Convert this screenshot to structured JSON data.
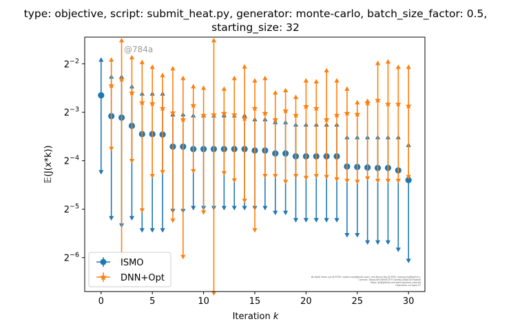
{
  "chart_data": {
    "type": "errorbar",
    "title": "type: objective, script: submit_heat.py, generator: monte-carlo, batch_size_factor: 0.5,",
    "title_line2": "starting_size: 32",
    "xlabel_text": "Iteration ",
    "xlabel_var": "k",
    "ylabel": "𝔼(J(x*k))",
    "y_scale": "log2",
    "xlim": [
      -1.6,
      31.6
    ],
    "ylim_log2": [
      -6.7,
      -1.45
    ],
    "x_ticks": [
      0,
      5,
      10,
      15,
      20,
      25,
      30
    ],
    "y_ticks": [
      {
        "base": "2",
        "exp": "−2",
        "log2": -2
      },
      {
        "base": "2",
        "exp": "−3",
        "log2": -3
      },
      {
        "base": "2",
        "exp": "−4",
        "log2": -4
      },
      {
        "base": "2",
        "exp": "−5",
        "log2": -5
      },
      {
        "base": "2",
        "exp": "−6",
        "log2": -6
      }
    ],
    "watermark": "@784a",
    "footer_lines": [
      "By Kjetil Olsen Lye @ ETHZ <kjetil.o.lye@gmail.com> and Kenny Ray @ EPFL <kenny.ray@epfl.ch>",
      "Commit: 784aa1697385f437f77d2e9b1284b13e7fa0bd0",
      "Repo: git@github.com:kjetil-lye/ismo_heat.git",
      "Hostname: eu-login-37"
    ],
    "legend": {
      "position": "lower-left",
      "entries": [
        "ISMO",
        "DNN+Opt"
      ]
    },
    "series": [
      {
        "name": "ISMO",
        "color": "#1f77b4",
        "marker": "circle",
        "x": [
          0,
          1,
          2,
          3,
          4,
          5,
          6,
          7,
          8,
          9,
          10,
          11,
          12,
          13,
          14,
          15,
          16,
          17,
          18,
          19,
          20,
          21,
          22,
          23,
          24,
          25,
          26,
          27,
          28,
          29,
          30
        ],
        "mean_log2": [
          -2.65,
          -3.08,
          -3.11,
          -3.28,
          -3.45,
          -3.45,
          -3.46,
          -3.71,
          -3.71,
          -3.76,
          -3.76,
          -3.76,
          -3.76,
          -3.76,
          -3.76,
          -3.79,
          -3.79,
          -3.85,
          -3.85,
          -3.91,
          -3.91,
          -3.91,
          -3.91,
          -3.91,
          -4.12,
          -4.13,
          -4.14,
          -4.15,
          -4.15,
          -4.2,
          -4.4
        ],
        "upper_log2": [
          -1.9,
          -2.25,
          -2.25,
          -2.45,
          -2.6,
          -2.6,
          -2.6,
          -3.03,
          -3.03,
          -3.05,
          -3.05,
          -3.05,
          -3.05,
          -3.05,
          -3.05,
          -3.13,
          -3.13,
          -3.19,
          -3.19,
          -3.24,
          -3.24,
          -3.24,
          -3.24,
          -3.24,
          -3.5,
          -3.5,
          -3.5,
          -3.5,
          -3.5,
          -3.5,
          -3.66
        ],
        "lower_log2": [
          -4.25,
          -5.2,
          -5.35,
          -5.2,
          -5.45,
          -5.45,
          -5.45,
          -5.05,
          -5.05,
          -4.99,
          -4.99,
          -4.99,
          -4.99,
          -4.99,
          -4.99,
          -4.99,
          -4.99,
          -5.09,
          -5.09,
          -5.24,
          -5.24,
          -5.24,
          -5.24,
          -5.24,
          -5.55,
          -5.55,
          -5.7,
          -5.7,
          -5.7,
          -5.85,
          -6.08
        ]
      },
      {
        "name": "DNN+Opt",
        "color": "#ff7f0e",
        "marker": "star",
        "x": [
          1,
          2,
          3,
          4,
          5,
          6,
          7,
          8,
          9,
          10,
          11,
          12,
          13,
          14,
          15,
          16,
          17,
          18,
          19,
          20,
          21,
          22,
          23,
          24,
          25,
          26,
          27,
          28,
          29,
          30
        ],
        "mean_log2": [
          -2.45,
          -2.32,
          -2.6,
          -2.8,
          -2.82,
          -2.92,
          -3.01,
          -3.15,
          -2.86,
          -3.06,
          -3.05,
          -3.02,
          -3.05,
          -3.13,
          -2.92,
          -3.02,
          -3.15,
          -2.97,
          -3.06,
          -2.88,
          -2.92,
          -3.15,
          -3.06,
          -3.02,
          -3.04,
          -2.81,
          -2.75,
          -2.83,
          -2.83,
          -2.87
        ],
        "upper_log2": [
          -1.9,
          -1.5,
          -1.85,
          -1.95,
          -2.05,
          -2.22,
          -2.08,
          -2.28,
          -2.45,
          -2.48,
          -1.5,
          -2.5,
          -2.28,
          -2.04,
          -2.33,
          -2.28,
          -2.58,
          -2.53,
          -2.67,
          -2.33,
          -2.35,
          -2.12,
          -2.33,
          -2.5,
          -2.78,
          -2.75,
          -1.97,
          -1.94,
          -2.05,
          -2.05
        ],
        "lower_log2": [
          -3.77,
          -6.1,
          -4.02,
          -5.04,
          -4.33,
          -4.25,
          -5.25,
          -6.0,
          -4.23,
          -5.08,
          -6.75,
          -4.27,
          -4.42,
          -4.84,
          -5.45,
          -4.33,
          -4.33,
          -4.45,
          -4.33,
          -4.37,
          -4.33,
          -4.35,
          -4.4,
          -4.43,
          -4.45,
          -4.38,
          -4.43,
          -4.43,
          -4.43,
          -4.35
        ]
      }
    ]
  }
}
